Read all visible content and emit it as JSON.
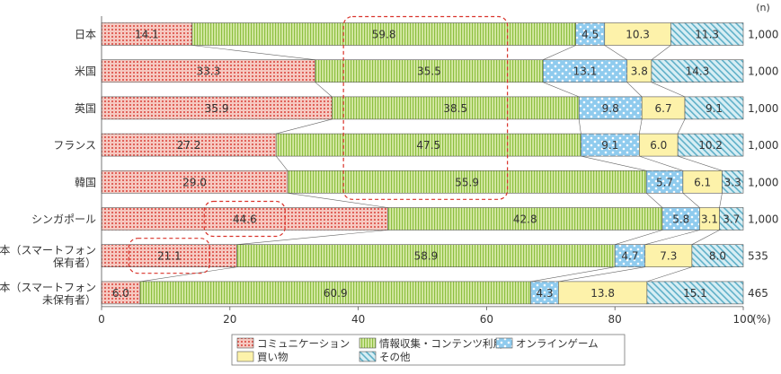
{
  "chart_data": {
    "type": "bar",
    "orientation": "horizontal",
    "stacked": true,
    "categories": [
      {
        "line1": "日本",
        "line2": ""
      },
      {
        "line1": "米国",
        "line2": ""
      },
      {
        "line1": "英国",
        "line2": ""
      },
      {
        "line1": "フランス",
        "line2": ""
      },
      {
        "line1": "韓国",
        "line2": ""
      },
      {
        "line1": "シンガポール",
        "line2": ""
      },
      {
        "line1": "日本（スマートフォン",
        "line2": "保有者）"
      },
      {
        "line1": "日本（スマートフォン",
        "line2": "未保有者）"
      }
    ],
    "n_header": "(n)",
    "n_values": [
      "1,000",
      "1,000",
      "1,000",
      "1,000",
      "1,000",
      "1,000",
      "535",
      "465"
    ],
    "series": [
      {
        "name": "コミュニケーション",
        "color": "#f4b8b0",
        "pattern": "dots-red",
        "values": [
          14.1,
          33.3,
          35.9,
          27.2,
          29.0,
          44.6,
          21.1,
          6.0
        ],
        "labels": [
          "14.1",
          "33.3",
          "35.9",
          "27.2",
          "29.0",
          "44.6",
          "21.1",
          "6.0"
        ]
      },
      {
        "name": "情報収集・コンテンツ利用",
        "color": "#cde39a",
        "pattern": "vlines-green",
        "values": [
          59.8,
          35.5,
          38.5,
          47.5,
          55.9,
          42.8,
          58.9,
          60.9
        ],
        "labels": [
          "59.8",
          "35.5",
          "38.5",
          "47.5",
          "55.9",
          "42.8",
          "58.9",
          "60.9"
        ]
      },
      {
        "name": "オンラインゲーム",
        "color": "#b9def2",
        "pattern": "dots-blue",
        "values": [
          4.5,
          13.1,
          9.8,
          9.1,
          5.7,
          5.8,
          4.7,
          4.3
        ],
        "labels": [
          "4.5",
          "13.1",
          "9.8",
          "9.1",
          "5.7",
          "5.8",
          "4.7",
          "4.3"
        ]
      },
      {
        "name": "買い物",
        "color": "#fdf0a6",
        "pattern": "solid-yellow",
        "values": [
          10.3,
          3.8,
          6.7,
          6.0,
          6.1,
          3.1,
          7.3,
          13.8
        ],
        "labels": [
          "10.3",
          "3.8",
          "6.7",
          "6.0",
          "6.1",
          "3.1",
          "7.3",
          "13.8"
        ]
      },
      {
        "name": "その他",
        "color": "#c7e4ec",
        "pattern": "diag-teal",
        "values": [
          11.3,
          14.3,
          9.1,
          10.2,
          3.3,
          3.7,
          8.0,
          15.1
        ],
        "labels": [
          "11.3",
          "14.3",
          "9.1",
          "10.2",
          "3.3",
          "3.7",
          "8.0",
          "15.1"
        ]
      }
    ],
    "xaxis": {
      "ticks": [
        0,
        20,
        40,
        60,
        80,
        100
      ],
      "tick_labels": [
        "0",
        "20",
        "40",
        "60",
        "80",
        "100"
      ],
      "unit": "(%)"
    },
    "xlim": [
      0,
      100
    ],
    "grid": false,
    "legend_position": "bottom",
    "connector_lines": true,
    "highlights": [
      {
        "series": 1,
        "rows_from": 0,
        "rows_to": 4
      },
      {
        "series": 0,
        "rows_from": 5,
        "rows_to": 5
      },
      {
        "series": 0,
        "rows_from": 6,
        "rows_to": 6
      }
    ]
  }
}
